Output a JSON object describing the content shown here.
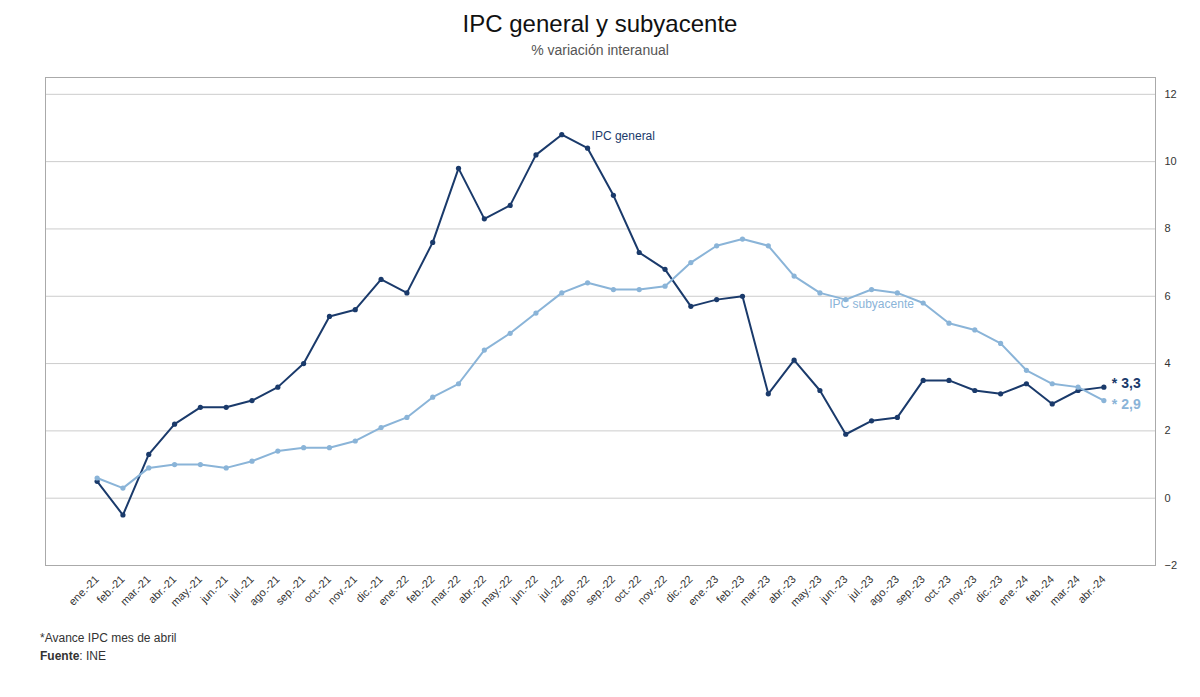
{
  "chart_data": {
    "type": "line",
    "title": "IPC general y subyacente",
    "subtitle": "% variación interanual",
    "footnote": "*Avance IPC mes de abril",
    "source": "Fuente: INE",
    "categories": [
      "ene.-21",
      "feb.-21",
      "mar.-21",
      "abr.-21",
      "may.-21",
      "jun.-21",
      "jul.-21",
      "ago.-21",
      "sep.-21",
      "oct.-21",
      "nov.-21",
      "dic.-21",
      "ene.-22",
      "feb.-22",
      "mar.-22",
      "abr.-22",
      "may.-22",
      "jun.-22",
      "jul.-22",
      "ago.-22",
      "sep.-22",
      "oct.-22",
      "nov.-22",
      "dic.-22",
      "ene.-23",
      "feb.-23",
      "mar.-23",
      "abr.-23",
      "may.-23",
      "jun.-23",
      "jul.-23",
      "ago.-23",
      "sep.-23",
      "oct.-23",
      "nov.-23",
      "dic.-23",
      "ene.-24",
      "feb.-24",
      "mar.-24",
      "abr.-24"
    ],
    "series": [
      {
        "name": "IPC general",
        "color": "#1a3a6b",
        "marker": "circle",
        "end_label": "* 3,3",
        "values": [
          0.5,
          -0.5,
          1.3,
          2.2,
          2.7,
          2.7,
          2.9,
          3.3,
          4.0,
          5.4,
          5.6,
          6.5,
          6.1,
          7.6,
          9.8,
          8.3,
          8.7,
          10.2,
          10.8,
          10.4,
          9.0,
          7.3,
          6.8,
          5.7,
          5.9,
          6.0,
          3.1,
          4.1,
          3.2,
          1.9,
          2.3,
          2.4,
          3.5,
          3.5,
          3.2,
          3.1,
          3.4,
          2.8,
          3.2,
          3.3
        ]
      },
      {
        "name": "IPC subyacente",
        "color": "#8ab4d8",
        "marker": "circle",
        "end_label": "* 2,9",
        "values": [
          0.6,
          0.3,
          0.9,
          1.0,
          1.0,
          0.9,
          1.1,
          1.4,
          1.5,
          1.5,
          1.7,
          2.1,
          2.4,
          3.0,
          3.4,
          4.4,
          4.9,
          5.5,
          6.1,
          6.4,
          6.2,
          6.2,
          6.3,
          7.0,
          7.5,
          7.7,
          7.5,
          6.6,
          6.1,
          5.9,
          6.2,
          6.1,
          5.8,
          5.2,
          5.0,
          4.6,
          3.8,
          3.4,
          3.3,
          2.9
        ]
      }
    ],
    "ylim": [
      -2,
      12.5
    ],
    "yticks": [
      -2,
      0,
      2,
      4,
      6,
      8,
      10,
      12
    ],
    "grid": true
  }
}
